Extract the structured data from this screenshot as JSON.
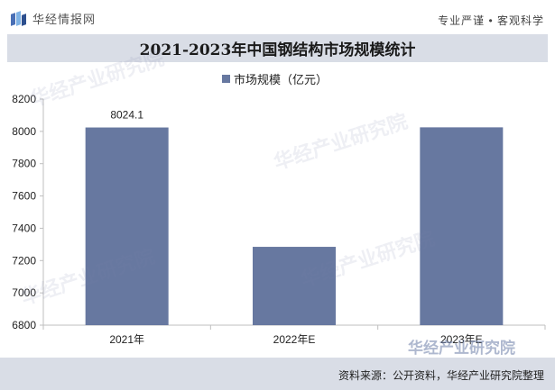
{
  "header": {
    "logo_text": "华经情报网",
    "slogan": "专业严谨 • 客观科学"
  },
  "chart_data": {
    "type": "bar",
    "title": "2021-2023年中国钢结构市场规模统计",
    "categories": [
      "2021年",
      "2022年E",
      "2023年E"
    ],
    "series": [
      {
        "name": "市场规模（亿元）",
        "values": [
          8024.1,
          7285,
          8025
        ]
      }
    ],
    "data_labels": [
      "8024.1",
      "",
      ""
    ],
    "ylim": [
      6800,
      8200
    ],
    "yticks": [
      6800,
      7000,
      7200,
      7400,
      7600,
      7800,
      8000,
      8200
    ],
    "xlabel": "",
    "ylabel": "",
    "grid": false,
    "legend": "top-center",
    "bar_color": "#6778a0"
  },
  "footer": {
    "source": "资料来源：公开资料，华经产业研究院整理"
  },
  "watermark": {
    "text": "华经产业研究院"
  }
}
